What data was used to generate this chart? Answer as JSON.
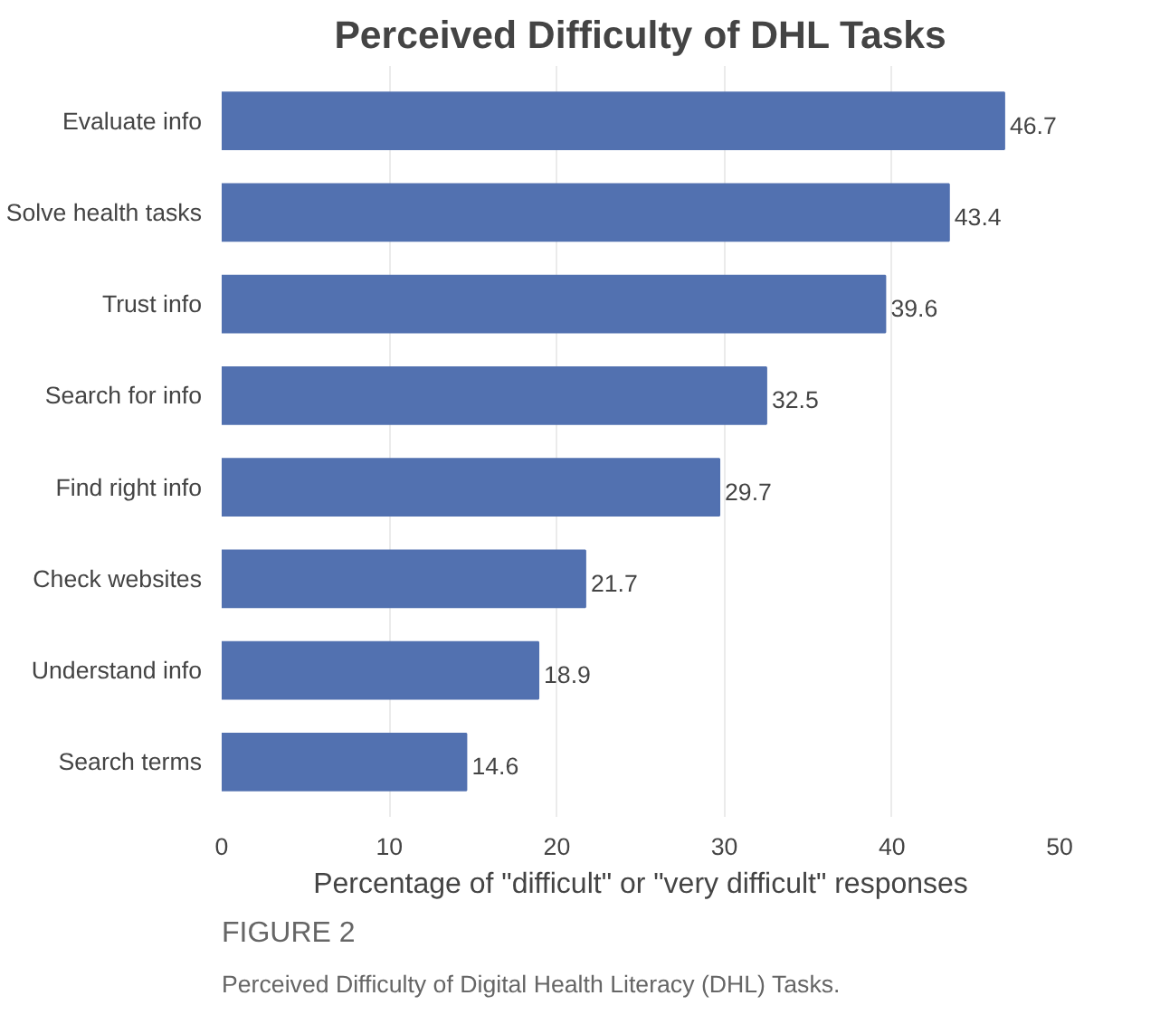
{
  "chart_data": {
    "type": "bar",
    "orientation": "horizontal",
    "title": "Perceived Difficulty of DHL Tasks",
    "xlabel": "Percentage of \"difficult\" or \"very difficult\" responses",
    "categories": [
      "Evaluate info",
      "Solve health tasks",
      "Trust info",
      "Search for info",
      "Find right info",
      "Check websites",
      "Understand info",
      "Search terms"
    ],
    "values": [
      46.7,
      43.4,
      39.6,
      32.5,
      29.7,
      21.7,
      18.9,
      14.6
    ],
    "color": "#5271b0",
    "data_labels": true,
    "xlim": [
      0,
      50
    ],
    "xticks": [
      0,
      10,
      20,
      30,
      40,
      50
    ],
    "grid": "x",
    "annotations": [
      "FIGURE 2",
      "Perceived Difficulty of Digital Health Literacy (DHL) Tasks."
    ]
  }
}
